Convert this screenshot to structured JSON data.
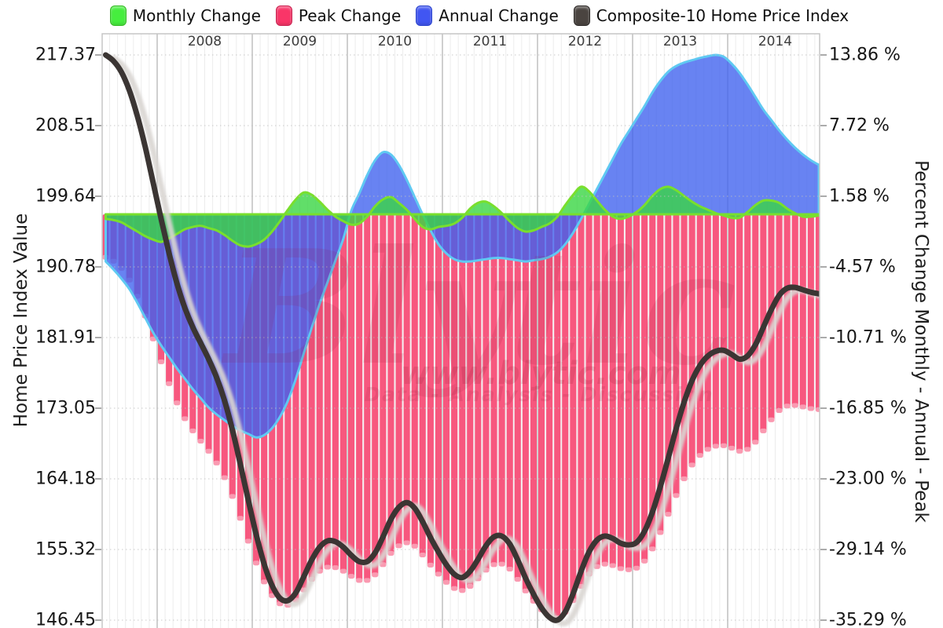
{
  "legend": {
    "items": [
      {
        "label": "Monthly Change",
        "color": "#46EE3E",
        "border": "#33BB22"
      },
      {
        "label": "Peak Change",
        "color": "#F93568",
        "border": "#C91F4E"
      },
      {
        "label": "Annual Change",
        "color": "#4156F2",
        "border": "#2740CE"
      },
      {
        "label": "Composite-10 Home Price Index",
        "color": "#4A4440",
        "border": "#2B2725"
      }
    ]
  },
  "axes": {
    "left": {
      "title": "Home Price Index Value",
      "ticks": [
        "217.37",
        "208.51",
        "199.64",
        "190.78",
        "181.91",
        "173.05",
        "164.18",
        "155.32",
        "146.45"
      ]
    },
    "right": {
      "title": "Percent Change Monthly - Annual - Peak",
      "ticks": [
        "13.86 %",
        "7.72 %",
        "1.58 %",
        "-4.57 %",
        "-10.71 %",
        "-16.85 %",
        "-23.00 %",
        "-29.14 %",
        "-35.29 %"
      ]
    },
    "top_years": [
      "2008",
      "2009",
      "2010",
      "2011",
      "2012",
      "2013",
      "2014"
    ]
  },
  "watermark": {
    "brand": "Blytic",
    "url": "www.blytic.com",
    "tagline": "Data - Analysis - Discussion"
  },
  "colors": {
    "background": "#FFFFFF",
    "plot_border": "#C6C6C6",
    "grid_month": "#ECECEC",
    "grid_year": "#CFCFCF",
    "grid_dotted": "#BFBFBF",
    "tick_text": "#161616",
    "year_text": "#3C3C3C",
    "monthly_fill": "rgba(58,214,68,0.80)",
    "monthly_stroke": "#79DF2D",
    "peak_bar": "#F7577E",
    "peak_bar_tip": "rgba(255,255,255,0.40)",
    "annual_fill": "rgba(62,96,238,0.78)",
    "annual_stroke": "#5FC9F2",
    "hpi_line": "#3B3533",
    "hpi_shadow": "#D9D5D2",
    "watermark_color": "148,28,56"
  },
  "chart_data": {
    "type": "combo (bar + area + area + line)",
    "frequency": "monthly",
    "x_start": "2007-06",
    "x_end": "2014-12",
    "n_points": 91,
    "x_axis_years": [
      2008,
      2009,
      2010,
      2011,
      2012,
      2013,
      2014
    ],
    "left_axis_range": [
      146.45,
      217.37
    ],
    "right_axis_range": [
      -35.29,
      13.86
    ],
    "grid": true,
    "legend_position": "top",
    "series": [
      {
        "key": "monthly",
        "name": "Monthly Change",
        "type": "area",
        "axis": "right",
        "unit": "%",
        "values": [
          -0.4,
          -0.5,
          -0.7,
          -1.1,
          -1.5,
          -1.9,
          -2.2,
          -2.4,
          -2.1,
          -1.7,
          -1.3,
          -1.1,
          -1.0,
          -1.2,
          -1.4,
          -1.8,
          -2.3,
          -2.7,
          -2.8,
          -2.6,
          -2.2,
          -1.5,
          -0.6,
          0.4,
          1.3,
          1.9,
          1.7,
          1.1,
          0.4,
          -0.2,
          -0.6,
          -0.9,
          -0.8,
          -0.2,
          0.7,
          1.3,
          1.5,
          1.0,
          0.4,
          -0.4,
          -1.1,
          -1.3,
          -1.1,
          -1.0,
          -0.8,
          -0.3,
          0.5,
          1.0,
          1.1,
          0.7,
          0.1,
          -0.6,
          -1.2,
          -1.5,
          -1.4,
          -1.1,
          -0.8,
          -0.2,
          0.8,
          1.7,
          2.4,
          2.0,
          1.2,
          0.4,
          -0.2,
          -0.4,
          -0.2,
          0.2,
          0.8,
          1.6,
          2.2,
          2.4,
          2.1,
          1.6,
          1.1,
          0.7,
          0.4,
          0.1,
          -0.1,
          -0.3,
          -0.3,
          0.2,
          0.8,
          1.2,
          1.2,
          1.0,
          0.5,
          0.1,
          -0.2,
          -0.2,
          -0.1
        ]
      },
      {
        "key": "peak",
        "name": "Peak Change",
        "type": "bar",
        "axis": "right",
        "unit": "%",
        "values": [
          -3.94,
          -4.28,
          -4.9,
          -5.92,
          -7.33,
          -9.05,
          -11.04,
          -13.03,
          -14.93,
          -16.61,
          -17.98,
          -19.04,
          -19.93,
          -20.81,
          -21.83,
          -23.11,
          -24.74,
          -26.64,
          -28.63,
          -30.53,
          -32.17,
          -33.36,
          -34.07,
          -34.2,
          -33.76,
          -32.87,
          -31.95,
          -31.24,
          -30.89,
          -30.93,
          -31.24,
          -31.68,
          -32.04,
          -32.04,
          -31.55,
          -30.67,
          -29.69,
          -29.03,
          -28.77,
          -29.07,
          -29.83,
          -30.71,
          -31.5,
          -32.21,
          -32.74,
          -32.92,
          -32.56,
          -31.9,
          -31.15,
          -30.67,
          -30.62,
          -31.06,
          -31.95,
          -32.96,
          -33.85,
          -34.6,
          -35.13,
          -35.29,
          -34.82,
          -33.8,
          -32.56,
          -31.5,
          -30.84,
          -30.62,
          -30.75,
          -31.02,
          -31.11,
          -30.97,
          -30.36,
          -29.3,
          -27.88,
          -26.29,
          -24.66,
          -23.2,
          -22.01,
          -21.17,
          -20.64,
          -20.37,
          -20.32,
          -20.54,
          -20.81,
          -20.64,
          -20.02,
          -19.04,
          -18.07,
          -17.27,
          -16.88,
          -16.83,
          -16.96,
          -17.1,
          -17.18
        ]
      },
      {
        "key": "annual",
        "name": "Annual Change",
        "type": "area",
        "axis": "right",
        "unit": "%",
        "values": [
          -4.1,
          -4.8,
          -5.6,
          -6.5,
          -7.7,
          -9.0,
          -10.3,
          -11.4,
          -12.4,
          -13.4,
          -14.3,
          -15.2,
          -16.0,
          -16.8,
          -17.4,
          -17.9,
          -18.4,
          -18.8,
          -19.1,
          -19.4,
          -19.2,
          -18.6,
          -17.6,
          -16.2,
          -14.3,
          -12.1,
          -9.9,
          -7.8,
          -5.9,
          -4.0,
          -2.1,
          0.3,
          1.8,
          3.4,
          4.7,
          5.4,
          5.2,
          4.3,
          3.0,
          1.5,
          0.0,
          -1.4,
          -2.6,
          -3.4,
          -3.9,
          -4.1,
          -4.1,
          -4.0,
          -3.9,
          -3.8,
          -3.8,
          -3.9,
          -4.0,
          -4.1,
          -4.0,
          -3.9,
          -3.7,
          -3.3,
          -2.6,
          -1.6,
          -0.4,
          0.9,
          2.2,
          3.5,
          4.8,
          6.1,
          7.2,
          8.3,
          9.4,
          10.6,
          11.6,
          12.4,
          12.9,
          13.2,
          13.4,
          13.6,
          13.75,
          13.86,
          13.7,
          13.1,
          12.3,
          11.3,
          10.2,
          9.1,
          8.2,
          7.3,
          6.5,
          5.8,
          5.2,
          4.7,
          4.3
        ]
      },
      {
        "key": "hpi",
        "name": "Composite-10 Home Price Index",
        "type": "line",
        "axis": "left",
        "unit": "index",
        "values": [
          217.37,
          216.6,
          215.2,
          212.9,
          209.7,
          205.8,
          201.3,
          196.8,
          192.5,
          188.7,
          185.6,
          183.2,
          181.2,
          179.2,
          176.9,
          174.0,
          170.3,
          166.0,
          161.5,
          157.2,
          153.5,
          150.8,
          149.2,
          148.9,
          149.9,
          151.9,
          154.0,
          155.6,
          156.4,
          156.3,
          155.6,
          154.6,
          153.8,
          153.8,
          154.9,
          156.9,
          159.1,
          160.6,
          161.2,
          160.5,
          158.8,
          156.8,
          155.0,
          153.4,
          152.2,
          151.8,
          152.6,
          154.1,
          155.8,
          156.9,
          157.0,
          156.0,
          154.0,
          151.7,
          149.7,
          148.0,
          146.8,
          146.45,
          147.5,
          149.8,
          152.6,
          155.0,
          156.5,
          157.0,
          156.7,
          156.1,
          155.9,
          156.2,
          157.6,
          160.0,
          163.2,
          166.8,
          170.5,
          173.8,
          176.5,
          178.4,
          179.6,
          180.2,
          180.3,
          179.8,
          179.2,
          179.6,
          181.0,
          183.2,
          185.4,
          187.2,
          188.1,
          188.2,
          187.9,
          187.6,
          187.4
        ]
      }
    ]
  }
}
